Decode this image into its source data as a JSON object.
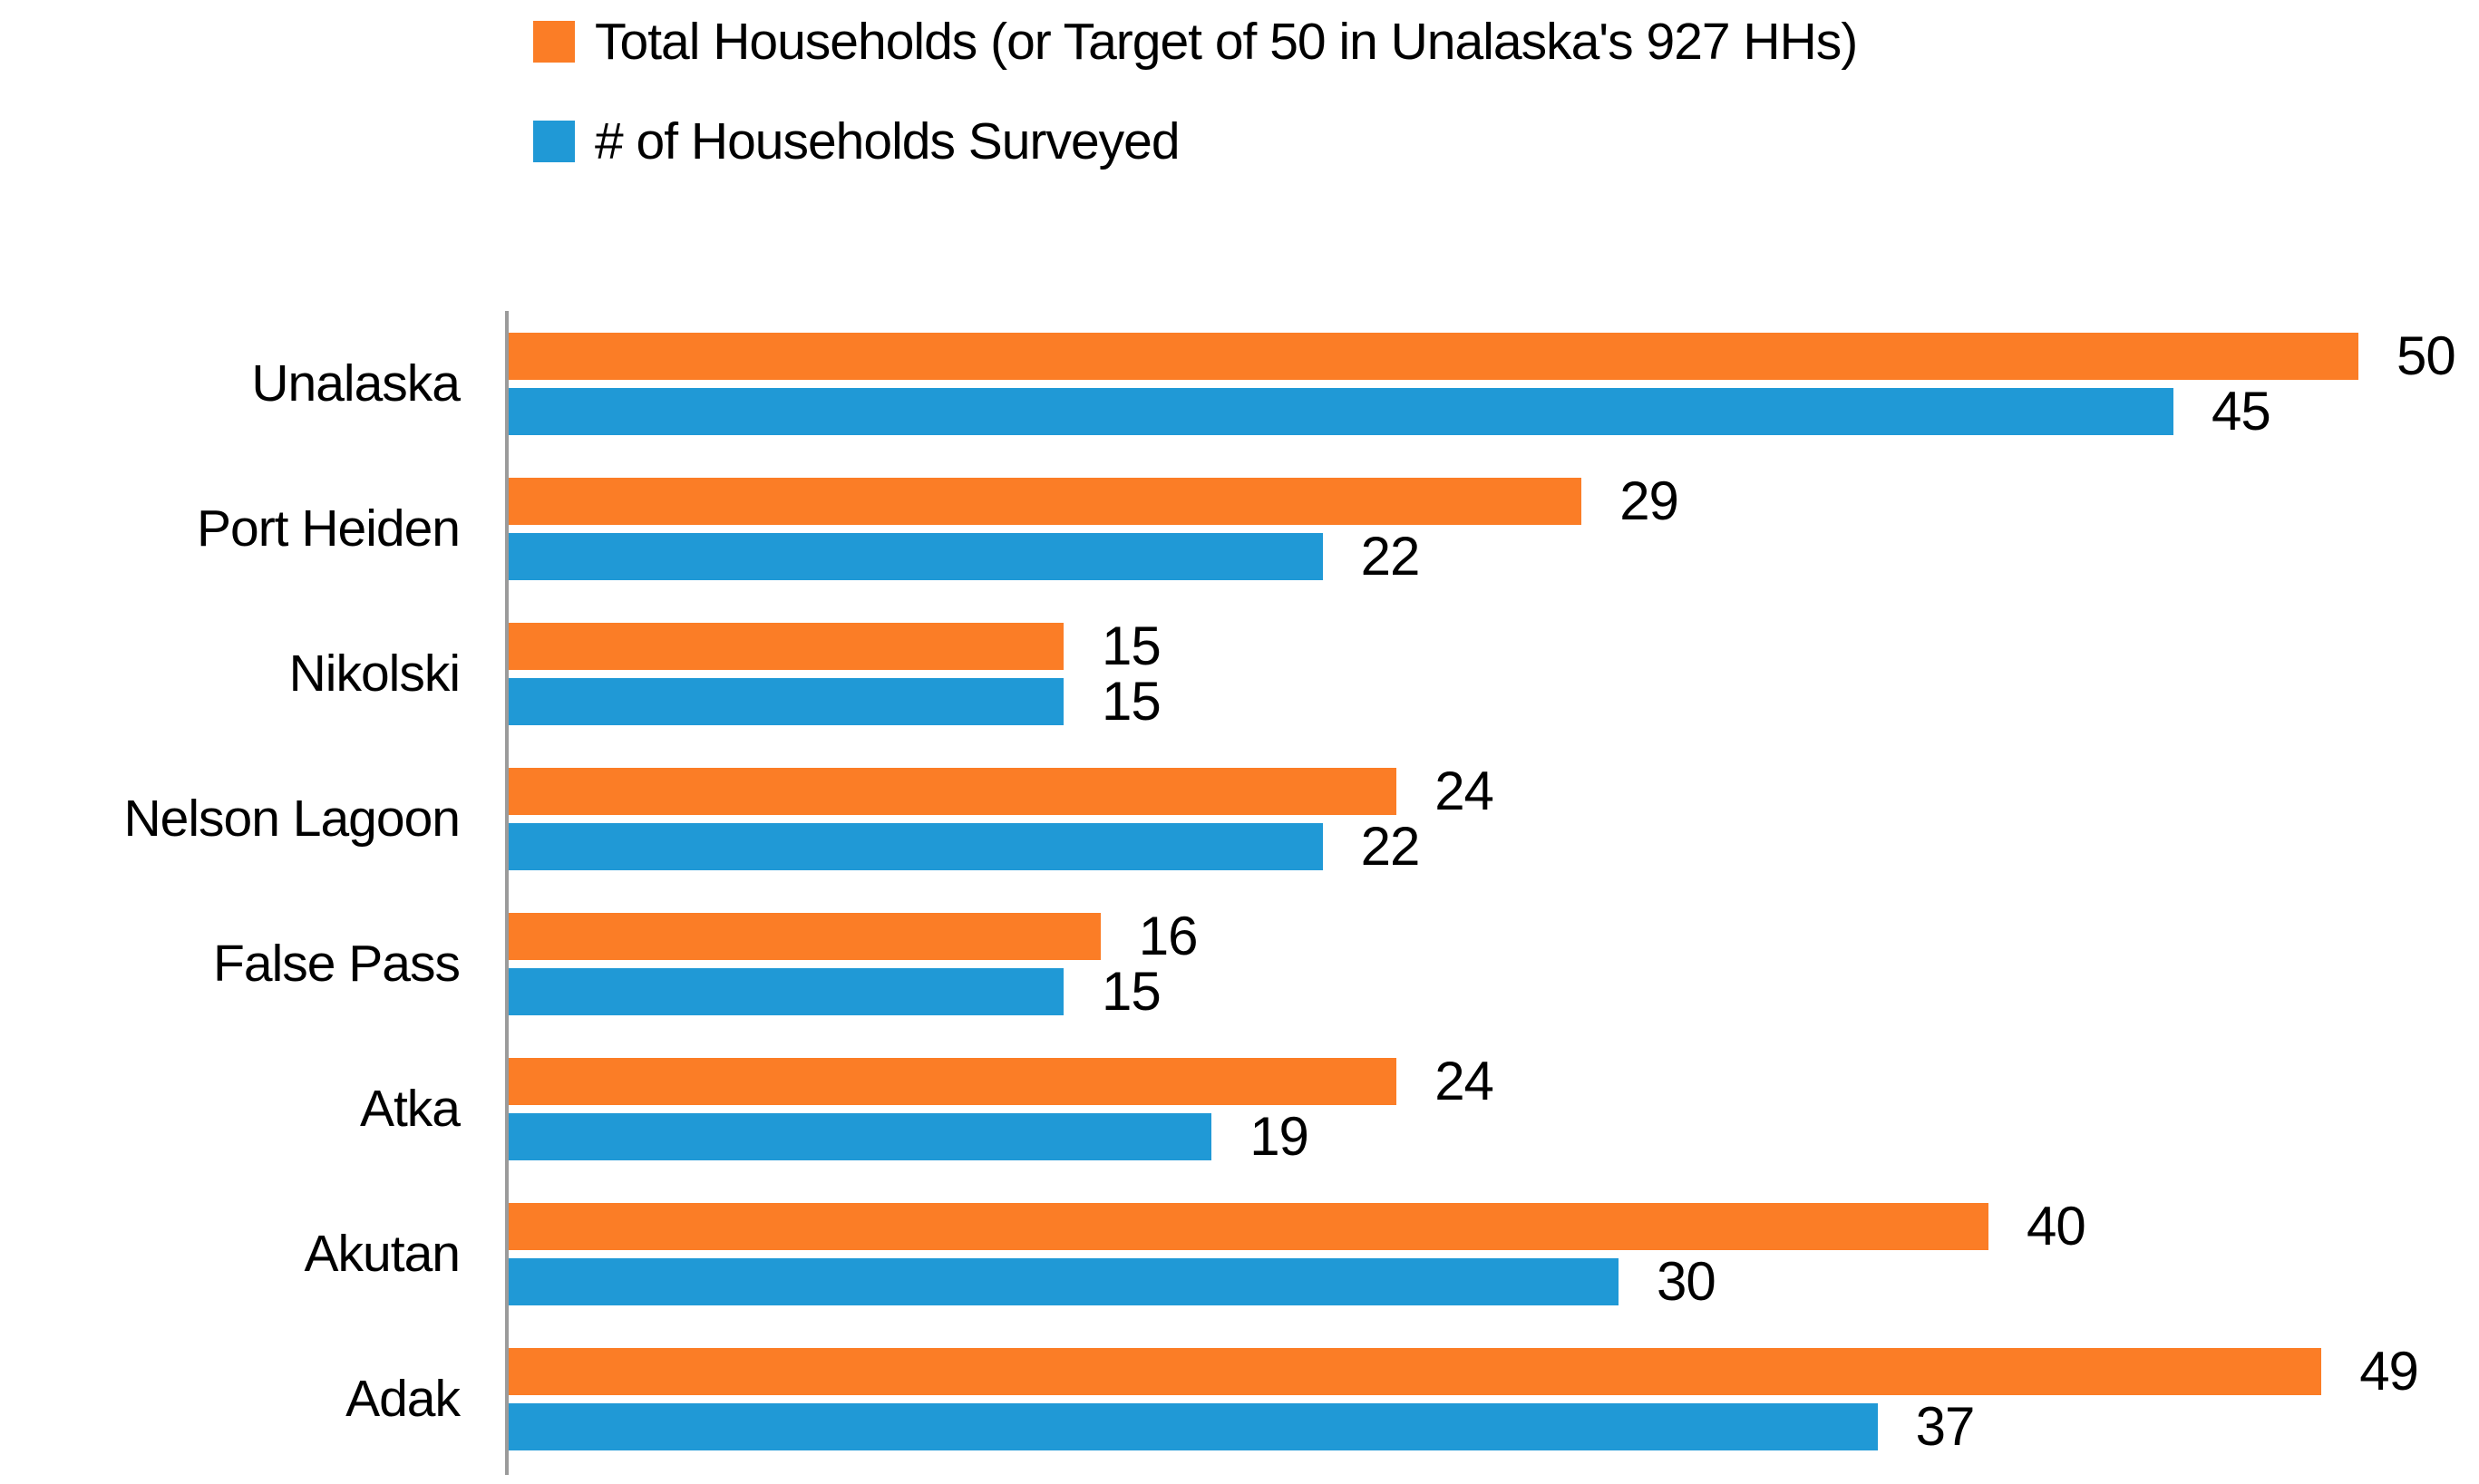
{
  "legend": {
    "items": [
      {
        "label": "Total Households (or Target of 50 in Unalaska's 927 HHs)",
        "color": "#FB7D26"
      },
      {
        "label": "# of Households Surveyed",
        "color": "#2099D6"
      }
    ]
  },
  "chart_data": {
    "type": "bar",
    "orientation": "horizontal",
    "title": "",
    "xlabel": "",
    "ylabel": "",
    "categories": [
      "Unalaska",
      "Port Heiden",
      "Nikolski",
      "Nelson Lagoon",
      "False Pass",
      "Atka",
      "Akutan",
      "Adak"
    ],
    "series": [
      {
        "name": "Total Households (or Target of 50 in Unalaska's 927 HHs)",
        "color": "#FB7D26",
        "values": [
          50,
          29,
          15,
          24,
          16,
          24,
          40,
          49
        ]
      },
      {
        "name": "# of Households Surveyed",
        "color": "#2099D6",
        "values": [
          45,
          22,
          15,
          22,
          15,
          19,
          30,
          37
        ]
      }
    ],
    "value_labels_shown": true,
    "xlim": [
      0,
      53
    ],
    "grid": "off",
    "legend_position": "top-left",
    "axis_line_color": "#9b9b9b",
    "bar_label_color": "#000000"
  }
}
